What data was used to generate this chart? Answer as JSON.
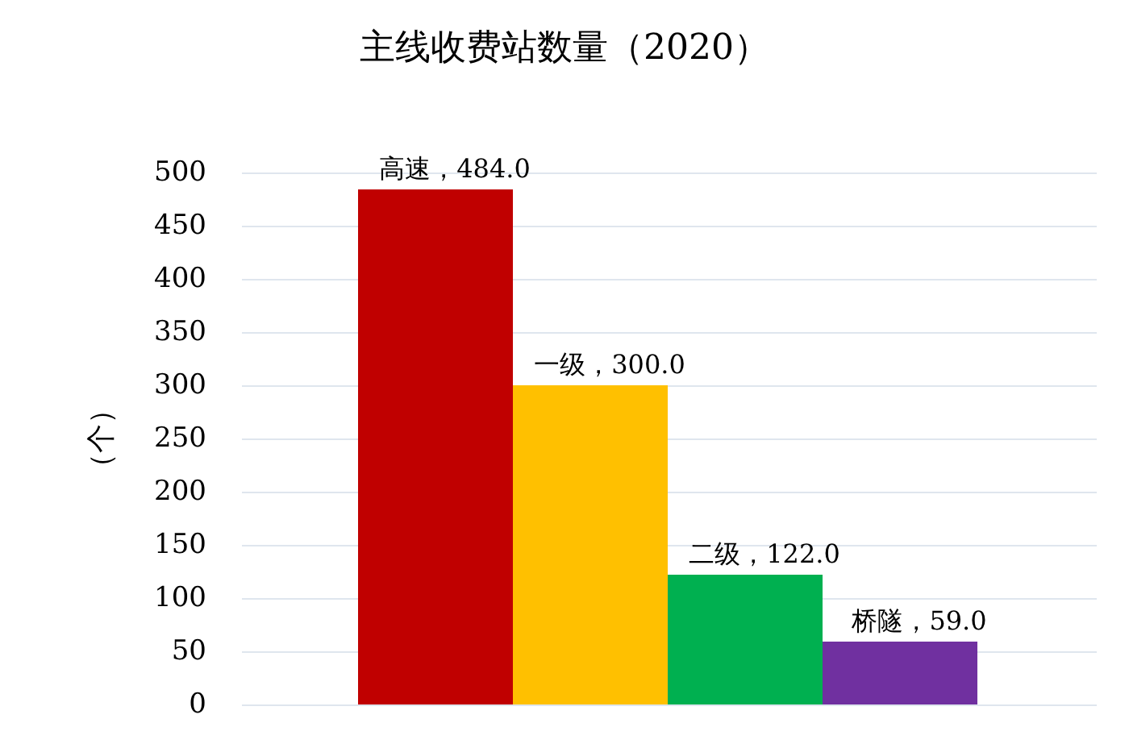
{
  "chart_data": {
    "type": "bar",
    "title": "主线收费站数量（2020）",
    "ylabel": "（个）",
    "categories": [
      "高速",
      "一级",
      "二级",
      "桥隧"
    ],
    "values": [
      484.0,
      300.0,
      122.0,
      59.0
    ],
    "colors": [
      "#c00000",
      "#ffc000",
      "#00b050",
      "#7030a0"
    ],
    "value_labels": [
      "，484.0",
      "，300.0",
      "，122.0",
      "，59.0"
    ],
    "ylim": [
      0,
      500
    ],
    "yticks": [
      0,
      50,
      100,
      150,
      200,
      250,
      300,
      350,
      400,
      450,
      500
    ],
    "grid": "y",
    "tick_labels": "y"
  }
}
